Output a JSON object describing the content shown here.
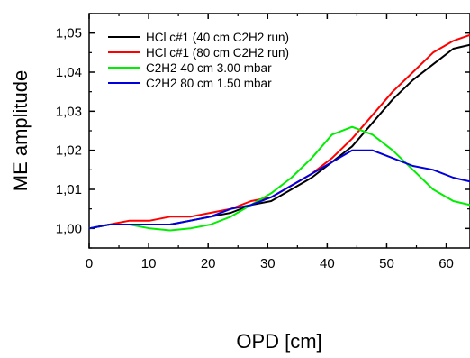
{
  "chart_data": {
    "type": "line",
    "title": "",
    "xlabel": "OPD [cm]",
    "ylabel": "ME amplitude",
    "xlim": [
      0,
      64
    ],
    "ylim": [
      0.995,
      1.055
    ],
    "x_ticks": [
      0,
      10,
      20,
      30,
      40,
      50,
      60
    ],
    "x_tick_labels": [
      "0",
      "10",
      "20",
      "30",
      "40",
      "50",
      "60"
    ],
    "y_ticks": [
      1.0,
      1.01,
      1.02,
      1.03,
      1.04,
      1.05
    ],
    "y_tick_labels": [
      "1,00",
      "1,01",
      "1,02",
      "1,03",
      "1,04",
      "1,05"
    ],
    "grid": false,
    "legend_position": "top-left",
    "series": [
      {
        "name": "HCl c#1 (40 cm C2H2 run)",
        "color": "#000000",
        "x": [
          0,
          3.4,
          6.8,
          10.2,
          13.6,
          17,
          20.4,
          23.8,
          27.2,
          30.6,
          34,
          37.4,
          40.8,
          44.2,
          47.6,
          51,
          54.4,
          57.8,
          61.2,
          64
        ],
        "y": [
          1.0,
          1.001,
          1.001,
          1.001,
          1.001,
          1.002,
          1.003,
          1.004,
          1.006,
          1.007,
          1.01,
          1.013,
          1.017,
          1.021,
          1.027,
          1.033,
          1.038,
          1.042,
          1.046,
          1.047
        ]
      },
      {
        "name": "HCl c#1 (80 cm C2H2 run)",
        "color": "#ff0000",
        "x": [
          0,
          3.4,
          6.8,
          10.2,
          13.6,
          17,
          20.4,
          23.8,
          27.2,
          30.6,
          34,
          37.4,
          40.8,
          44.2,
          47.6,
          51,
          54.4,
          57.8,
          61.2,
          64
        ],
        "y": [
          1.0,
          1.001,
          1.002,
          1.002,
          1.003,
          1.003,
          1.004,
          1.005,
          1.007,
          1.008,
          1.011,
          1.014,
          1.018,
          1.023,
          1.029,
          1.035,
          1.04,
          1.045,
          1.048,
          1.0495
        ]
      },
      {
        "name": "C2H2 40 cm 3.00 mbar",
        "color": "#00ee00",
        "x": [
          0,
          3.4,
          6.8,
          10.2,
          13.6,
          17,
          20.4,
          23.8,
          27.2,
          30.6,
          34,
          37.4,
          40.8,
          44.2,
          47.6,
          51,
          54.4,
          57.8,
          61.2,
          64
        ],
        "y": [
          1.0,
          1.001,
          1.001,
          1.0,
          0.9995,
          1.0,
          1.001,
          1.003,
          1.006,
          1.009,
          1.013,
          1.018,
          1.024,
          1.026,
          1.024,
          1.02,
          1.015,
          1.01,
          1.007,
          1.006
        ]
      },
      {
        "name": "C2H2 80 cm 1.50 mbar",
        "color": "#0000dd",
        "x": [
          0,
          3.4,
          6.8,
          10.2,
          13.6,
          17,
          20.4,
          23.8,
          27.2,
          30.6,
          34,
          37.4,
          40.8,
          44.2,
          47.6,
          51,
          54.4,
          57.8,
          61.2,
          64
        ],
        "y": [
          1.0,
          1.001,
          1.001,
          1.001,
          1.001,
          1.002,
          1.003,
          1.005,
          1.006,
          1.008,
          1.011,
          1.014,
          1.017,
          1.02,
          1.02,
          1.018,
          1.016,
          1.015,
          1.013,
          1.012
        ]
      }
    ]
  }
}
